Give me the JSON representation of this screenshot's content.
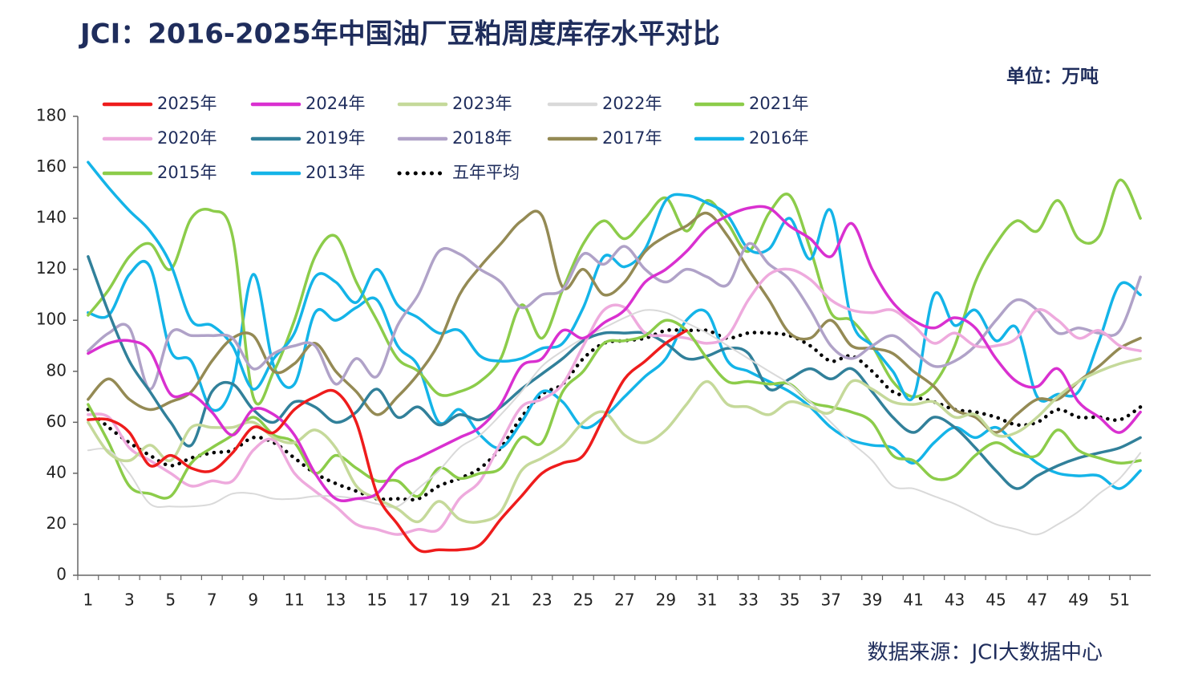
{
  "chart_data": {
    "type": "line",
    "title": "JCI：2016-2025年中国油厂豆粕周度库存水平对比",
    "unit_label": "单位：万吨",
    "source": "数据来源：JCI大数据中心",
    "categories": [
      1,
      null,
      3,
      null,
      5,
      null,
      7,
      null,
      9,
      null,
      11,
      null,
      13,
      null,
      15,
      null,
      17,
      null,
      19,
      null,
      21,
      null,
      23,
      null,
      25,
      null,
      27,
      null,
      29,
      null,
      31,
      null,
      33,
      null,
      35,
      null,
      37,
      null,
      39,
      null,
      41,
      null,
      43,
      null,
      45,
      null,
      47,
      null,
      49,
      null,
      51,
      null
    ],
    "ylim": [
      0,
      180
    ],
    "yticks": [
      0,
      20,
      40,
      60,
      80,
      100,
      120,
      140,
      160,
      180
    ],
    "grid": false,
    "legend": "top",
    "series": [
      {
        "name": "2025年",
        "color": "#ee1c1c",
        "values": [
          61,
          61,
          56,
          43,
          47,
          42,
          41,
          48,
          58,
          56,
          65,
          70,
          72,
          60,
          32,
          20,
          10,
          10,
          10,
          12,
          22,
          31,
          40,
          44,
          47,
          62,
          77,
          84,
          91,
          96,
          null,
          null,
          null,
          null,
          null,
          null,
          null,
          null,
          null,
          null,
          null,
          null,
          null,
          null,
          null,
          null,
          null,
          null,
          null,
          null,
          null,
          null
        ]
      },
      {
        "name": "2024年",
        "color": "#d930d0",
        "values": [
          87,
          91,
          92,
          88,
          71,
          71,
          64,
          55,
          65,
          63,
          55,
          40,
          30,
          30,
          32,
          42,
          46,
          50,
          54,
          58,
          67,
          82,
          85,
          96,
          93,
          99,
          104,
          115,
          120,
          127,
          136,
          141,
          144,
          144,
          137,
          132,
          125,
          138,
          120,
          107,
          100,
          97,
          101,
          97,
          85,
          76,
          74,
          81,
          68,
          62,
          56,
          64
        ]
      },
      {
        "name": "2023年",
        "color": "#c5d99a",
        "values": [
          60,
          48,
          45,
          51,
          45,
          58,
          58,
          58,
          60,
          54,
          52,
          57,
          50,
          35,
          30,
          26,
          21,
          29,
          22,
          21,
          25,
          41,
          46,
          51,
          60,
          64,
          55,
          52,
          57,
          67,
          76,
          67,
          66,
          63,
          68,
          66,
          64,
          76,
          73,
          68,
          67,
          68,
          62,
          63,
          55,
          56,
          62,
          70,
          76,
          80,
          83,
          85
        ]
      },
      {
        "name": "2022年",
        "color": "#d9d9d9",
        "values": [
          49,
          49,
          40,
          28,
          27,
          27,
          28,
          32,
          32,
          30,
          30,
          31,
          31,
          30,
          28,
          27,
          34,
          41,
          50,
          55,
          63,
          72,
          82,
          88,
          93,
          97,
          101,
          104,
          103,
          99,
          95,
          90,
          85,
          80,
          75,
          68,
          60,
          52,
          45,
          35,
          34,
          31,
          28,
          24,
          20,
          18,
          16,
          20,
          25,
          32,
          38,
          48
        ]
      },
      {
        "name": "2021年",
        "color": "#8ccc4a",
        "values": [
          67,
          52,
          35,
          32,
          31,
          44,
          50,
          55,
          62,
          55,
          52,
          40,
          47,
          42,
          37,
          37,
          31,
          42,
          38,
          40,
          42,
          54,
          52,
          72,
          80,
          91,
          92,
          94,
          100,
          96,
          85,
          76,
          76,
          75,
          75,
          68,
          66,
          64,
          60,
          47,
          45,
          38,
          39,
          47,
          52,
          48,
          47,
          57,
          49,
          46,
          44,
          45
        ]
      },
      {
        "name": "2020年",
        "color": "#eeaadd",
        "values": [
          63,
          62,
          50,
          45,
          40,
          35,
          37,
          37,
          49,
          53,
          40,
          33,
          27,
          20,
          18,
          16,
          18,
          18,
          30,
          37,
          52,
          66,
          69,
          75,
          90,
          104,
          105,
          95,
          94,
          93,
          91,
          94,
          108,
          118,
          120,
          116,
          108,
          104,
          103,
          104,
          98,
          91,
          95,
          90,
          90,
          93,
          104,
          100,
          93,
          96,
          90,
          88
        ]
      },
      {
        "name": "2019年",
        "color": "#31809a",
        "values": [
          125,
          103,
          84,
          72,
          60,
          51,
          72,
          75,
          65,
          60,
          68,
          66,
          60,
          64,
          73,
          62,
          66,
          59,
          63,
          61,
          66,
          73,
          79,
          85,
          92,
          95,
          95,
          95,
          91,
          85,
          86,
          89,
          87,
          73,
          77,
          81,
          77,
          81,
          72,
          62,
          56,
          62,
          58,
          50,
          41,
          34,
          39,
          43,
          46,
          48,
          50,
          54
        ]
      },
      {
        "name": "2018年",
        "color": "#b0a2c8",
        "values": [
          88,
          95,
          97,
          73,
          95,
          94,
          94,
          93,
          81,
          87,
          90,
          90,
          75,
          85,
          78,
          98,
          110,
          127,
          126,
          120,
          115,
          105,
          110,
          112,
          126,
          122,
          129,
          120,
          115,
          120,
          117,
          114,
          130,
          122,
          116,
          104,
          90,
          85,
          90,
          94,
          88,
          82,
          84,
          90,
          100,
          108,
          104,
          95,
          97,
          95,
          96,
          117
        ]
      },
      {
        "name": "2017年",
        "color": "#948a54",
        "values": [
          69,
          77,
          69,
          65,
          68,
          72,
          84,
          93,
          94,
          80,
          83,
          91,
          80,
          72,
          63,
          70,
          79,
          91,
          110,
          121,
          130,
          139,
          141,
          113,
          120,
          110,
          115,
          127,
          133,
          137,
          142,
          133,
          120,
          108,
          95,
          93,
          100,
          90,
          89,
          87,
          80,
          74,
          65,
          62,
          56,
          63,
          69,
          69,
          76,
          82,
          89,
          93
        ]
      },
      {
        "name": "2016年",
        "color": "#14b4e8",
        "values": [
          162,
          152,
          143,
          135,
          122,
          100,
          98,
          90,
          73,
          85,
          95,
          117,
          115,
          107,
          120,
          106,
          101,
          95,
          96,
          86,
          84,
          85,
          89,
          91,
          105,
          125,
          121,
          128,
          147,
          149,
          146,
          141,
          128,
          128,
          140,
          124,
          143,
          100,
          90,
          80,
          70,
          110,
          98,
          104,
          92,
          97,
          70,
          71,
          72,
          92,
          114,
          110
        ]
      },
      {
        "name": "2015年",
        "color": "#8ccc4a",
        "values": [
          102,
          112,
          125,
          130,
          120,
          140,
          143,
          133,
          70,
          80,
          100,
          125,
          133,
          115,
          100,
          85,
          80,
          71,
          72,
          76,
          85,
          106,
          93,
          112,
          130,
          139,
          132,
          140,
          148,
          135,
          147,
          138,
          127,
          142,
          149,
          128,
          103,
          100,
          90,
          76,
          70,
          75,
          90,
          115,
          130,
          139,
          135,
          147,
          132,
          133,
          155,
          140
        ]
      },
      {
        "name": "2013年",
        "color": "#14b4e8",
        "values": [
          103,
          102,
          118,
          121,
          88,
          84,
          65,
          75,
          118,
          82,
          75,
          103,
          100,
          105,
          108,
          90,
          82,
          60,
          65,
          55,
          50,
          60,
          72,
          68,
          58,
          62,
          70,
          78,
          85,
          100,
          103,
          84,
          80,
          76,
          72,
          66,
          58,
          53,
          51,
          50,
          44,
          52,
          58,
          54,
          58,
          51,
          44,
          40,
          39,
          39,
          34,
          41
        ]
      },
      {
        "name": "五年平均",
        "color": "#000000",
        "style": "dotted",
        "values": [
          65,
          58,
          52,
          47,
          43,
          46,
          48,
          49,
          54,
          52,
          46,
          40,
          36,
          33,
          30,
          30,
          30,
          35,
          38,
          42,
          50,
          62,
          71,
          75,
          85,
          91,
          92,
          93,
          96,
          96,
          96,
          93,
          95,
          95,
          94,
          90,
          84,
          86,
          80,
          72,
          70,
          68,
          65,
          64,
          62,
          59,
          60,
          65,
          62,
          62,
          61,
          66
        ]
      }
    ]
  }
}
